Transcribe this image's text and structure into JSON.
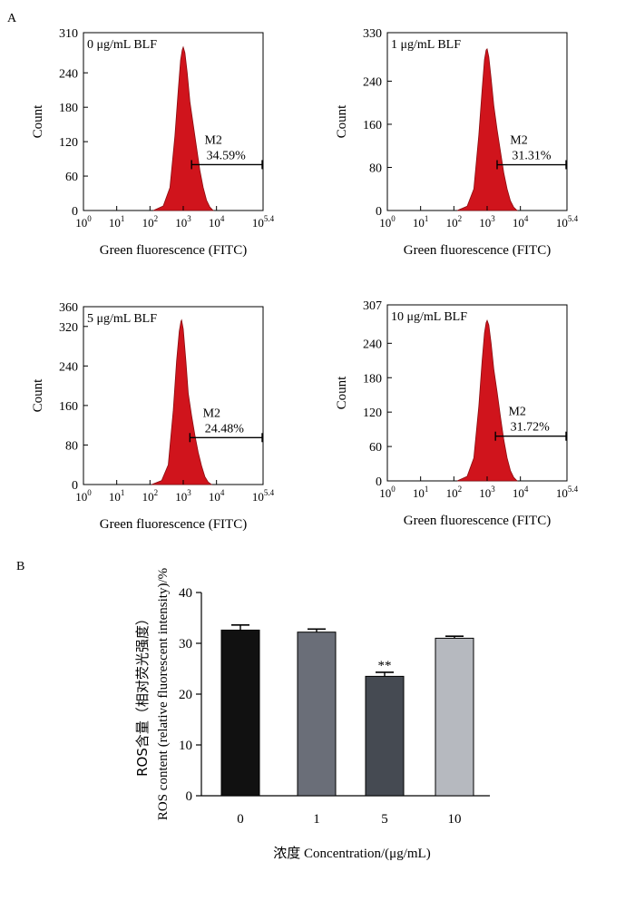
{
  "panel_labels": {
    "a": "A",
    "b": "B"
  },
  "colors": {
    "histogram_fill": "#d0141c",
    "histogram_edge": "#8a0c10",
    "bars": [
      "#111111",
      "#6a6e78",
      "#454a52",
      "#b6b9bf"
    ]
  },
  "chart_data": [
    {
      "type": "area",
      "title": "0 μg/mL BLF",
      "xlabel": "Green fluorescence (FITC)",
      "ylabel": "Count",
      "x_scale": "log",
      "xlim_log10": [
        0,
        5.4
      ],
      "xtick_labels": [
        {
          "base": "10",
          "exp": "0"
        },
        {
          "base": "10",
          "exp": "1"
        },
        {
          "base": "10",
          "exp": "2"
        },
        {
          "base": "10",
          "exp": "3"
        },
        {
          "base": "10",
          "exp": "4"
        },
        {
          "base": "10",
          "exp": "5.4"
        }
      ],
      "ylim": [
        0,
        310
      ],
      "yticks": [
        0,
        60,
        120,
        180,
        240,
        310
      ],
      "peak_log10": 3.0,
      "peak_count": 285,
      "gate": {
        "name": "M2",
        "percent": "34.59%",
        "start_log10": 3.25,
        "y": 80
      },
      "series": [
        {
          "x_log10": [
            2.1,
            2.4,
            2.6,
            2.75,
            2.85,
            2.92,
            2.97,
            3.0,
            3.05,
            3.12,
            3.2,
            3.3,
            3.4,
            3.5,
            3.6,
            3.7,
            3.8,
            3.9
          ],
          "y": [
            0,
            8,
            40,
            130,
            210,
            262,
            280,
            285,
            275,
            240,
            190,
            150,
            110,
            70,
            40,
            18,
            6,
            0
          ]
        }
      ]
    },
    {
      "type": "area",
      "title": "1 μg/mL BLF",
      "xlabel": "Green fluorescence (FITC)",
      "ylabel": "Count",
      "x_scale": "log",
      "xlim_log10": [
        0,
        5.4
      ],
      "xtick_labels": [
        {
          "base": "10",
          "exp": "0"
        },
        {
          "base": "10",
          "exp": "1"
        },
        {
          "base": "10",
          "exp": "2"
        },
        {
          "base": "10",
          "exp": "3"
        },
        {
          "base": "10",
          "exp": "4"
        },
        {
          "base": "10",
          "exp": "5.4"
        }
      ],
      "ylim": [
        0,
        330
      ],
      "yticks": [
        0,
        80,
        160,
        240,
        330
      ],
      "peak_log10": 3.0,
      "peak_count": 300,
      "gate": {
        "name": "M2",
        "percent": "31.31%",
        "start_log10": 3.3,
        "y": 85
      },
      "series": [
        {
          "x_log10": [
            2.1,
            2.4,
            2.6,
            2.75,
            2.85,
            2.92,
            2.97,
            3.0,
            3.05,
            3.12,
            3.2,
            3.3,
            3.4,
            3.5,
            3.6,
            3.7,
            3.8,
            3.9
          ],
          "y": [
            0,
            8,
            40,
            140,
            225,
            280,
            298,
            300,
            285,
            245,
            195,
            150,
            110,
            70,
            40,
            18,
            6,
            0
          ]
        }
      ]
    },
    {
      "type": "area",
      "title": "5 μg/mL BLF",
      "xlabel": "Green fluorescence (FITC)",
      "ylabel": "Count",
      "x_scale": "log",
      "xlim_log10": [
        0,
        5.4
      ],
      "xtick_labels": [
        {
          "base": "10",
          "exp": "0"
        },
        {
          "base": "10",
          "exp": "1"
        },
        {
          "base": "10",
          "exp": "2"
        },
        {
          "base": "10",
          "exp": "3"
        },
        {
          "base": "10",
          "exp": "4"
        },
        {
          "base": "10",
          "exp": "5.4"
        }
      ],
      "ylim": [
        0,
        360
      ],
      "yticks": [
        0,
        80,
        160,
        240,
        320,
        360
      ],
      "peak_log10": 2.95,
      "peak_count": 333,
      "gate": {
        "name": "M2",
        "percent": "24.48%",
        "start_log10": 3.2,
        "y": 95
      },
      "series": [
        {
          "x_log10": [
            2.05,
            2.35,
            2.55,
            2.7,
            2.8,
            2.88,
            2.93,
            2.95,
            3.0,
            3.08,
            3.15,
            3.25,
            3.35,
            3.45,
            3.55,
            3.65,
            3.75,
            3.85
          ],
          "y": [
            0,
            8,
            40,
            150,
            250,
            310,
            330,
            333,
            315,
            250,
            185,
            140,
            100,
            65,
            38,
            16,
            5,
            0
          ]
        }
      ]
    },
    {
      "type": "area",
      "title": "10 μg/mL BLF",
      "xlabel": "Green fluorescence (FITC)",
      "ylabel": "Count",
      "x_scale": "log",
      "xlim_log10": [
        0,
        5.4
      ],
      "xtick_labels": [
        {
          "base": "10",
          "exp": "0"
        },
        {
          "base": "10",
          "exp": "1"
        },
        {
          "base": "10",
          "exp": "2"
        },
        {
          "base": "10",
          "exp": "3"
        },
        {
          "base": "10",
          "exp": "4"
        },
        {
          "base": "10",
          "exp": "5.4"
        }
      ],
      "ylim": [
        0,
        307
      ],
      "yticks": [
        0,
        60,
        120,
        180,
        240,
        307
      ],
      "peak_log10": 3.0,
      "peak_count": 280,
      "gate": {
        "name": "M2",
        "percent": "31.72%",
        "start_log10": 3.25,
        "y": 78
      },
      "series": [
        {
          "x_log10": [
            2.1,
            2.4,
            2.6,
            2.75,
            2.85,
            2.92,
            2.97,
            3.0,
            3.05,
            3.12,
            3.2,
            3.3,
            3.4,
            3.5,
            3.6,
            3.7,
            3.8,
            3.9
          ],
          "y": [
            0,
            8,
            40,
            130,
            210,
            258,
            276,
            280,
            272,
            240,
            195,
            155,
            112,
            72,
            40,
            18,
            6,
            0
          ]
        }
      ]
    },
    {
      "type": "bar",
      "title": "",
      "xlabel": "浓度  Concentration/(μg/mL)",
      "ylabel_cn": "ROS含量（相对荧光强度）",
      "ylabel_en": "ROS content (relative fluorescent intensity)/%",
      "categories": [
        "0",
        "1",
        "5",
        "10"
      ],
      "values": [
        32.6,
        32.2,
        23.5,
        31.0
      ],
      "errors": [
        1.0,
        0.6,
        0.8,
        0.4
      ],
      "annotations": [
        "",
        "",
        "**",
        ""
      ],
      "ylim": [
        0,
        40
      ],
      "yticks": [
        0,
        10,
        20,
        30,
        40
      ]
    }
  ]
}
